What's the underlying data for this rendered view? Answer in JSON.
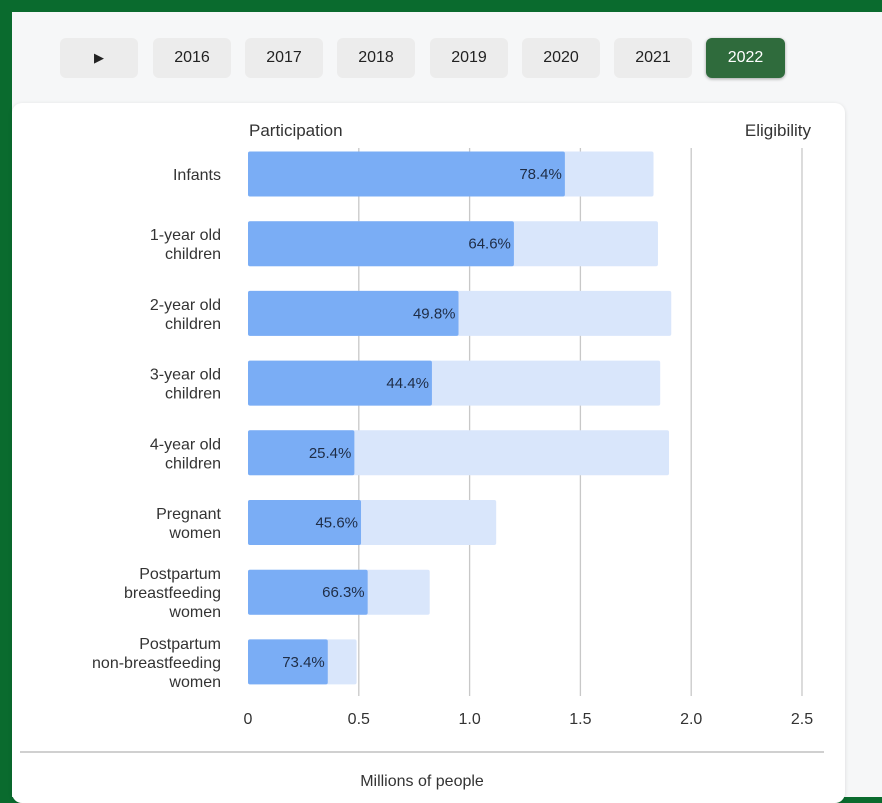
{
  "controls": {
    "play_icon": "play-icon",
    "play_glyph": "▶",
    "years": [
      "2016",
      "2017",
      "2018",
      "2019",
      "2020",
      "2021",
      "2022"
    ],
    "selected_year": "2022"
  },
  "colors": {
    "participation": "#7aadf5",
    "eligibility": "#d9e6fb",
    "active_button": "#2f6b3c"
  },
  "chart_data": {
    "type": "bar",
    "orientation": "horizontal",
    "categories": [
      "Infants",
      "1-year old children",
      "2-year old children",
      "3-year old children",
      "4-year old children",
      "Pregnant women",
      "Postpartum breastfeeding women",
      "Postpartum non-breastfeeding women"
    ],
    "category_lines": [
      [
        "Infants"
      ],
      [
        "1-year old",
        "children"
      ],
      [
        "2-year old",
        "children"
      ],
      [
        "3-year old",
        "children"
      ],
      [
        "4-year old",
        "children"
      ],
      [
        "Pregnant",
        "women"
      ],
      [
        "Postpartum",
        "breastfeeding",
        "women"
      ],
      [
        "Postpartum",
        "non-breastfeeding",
        "women"
      ]
    ],
    "series": [
      {
        "name": "Eligibility",
        "values": [
          1.83,
          1.85,
          1.91,
          1.86,
          1.9,
          1.12,
          0.82,
          0.49
        ]
      },
      {
        "name": "Participation",
        "values": [
          1.43,
          1.2,
          0.95,
          0.83,
          0.48,
          0.51,
          0.54,
          0.36
        ]
      }
    ],
    "data_labels": [
      "78.4%",
      "64.6%",
      "49.8%",
      "44.4%",
      "25.4%",
      "45.6%",
      "66.3%",
      "73.4%"
    ],
    "column_headers": {
      "left": "Participation",
      "right": "Eligibility"
    },
    "xlabel": "Millions of people",
    "xlim": [
      0,
      2.5
    ],
    "xticks": [
      "0",
      "0.5",
      "1.0",
      "1.5",
      "2.0",
      "2.5"
    ],
    "grid": "vertical"
  }
}
